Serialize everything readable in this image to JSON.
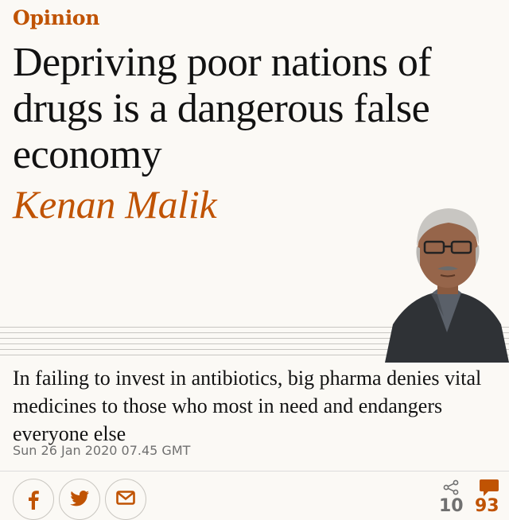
{
  "section": "Opinion",
  "headline": "Depriving poor nations of drugs is a dangerous false economy",
  "byline": "Kenan Malik",
  "standfirst": "In failing to invest in antibiotics, big pharma denies vital medicines to those who most in need and endangers everyone else",
  "dateline": "Sun 26 Jan 2020 07.45 GMT",
  "share": {
    "buttons": [
      {
        "icon": "facebook-icon"
      },
      {
        "icon": "twitter-icon"
      },
      {
        "icon": "email-icon"
      }
    ],
    "share_count": "10",
    "comment_count": "93"
  },
  "colors": {
    "accent": "#c05303",
    "background": "#fbf9f5",
    "text": "#121212",
    "meta": "#707070"
  }
}
